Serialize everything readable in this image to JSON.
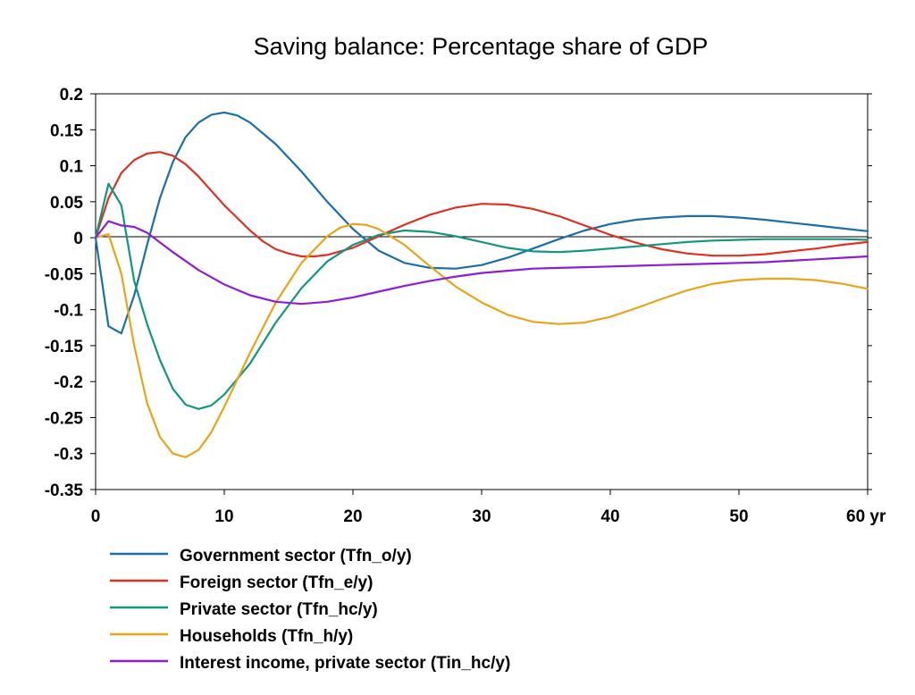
{
  "chart_data": {
    "type": "line",
    "title": "Saving balance: Percentage share of GDP",
    "x_unit": "yr",
    "xlim": [
      0,
      60
    ],
    "ylim": [
      -0.35,
      0.2
    ],
    "x_ticks": [
      0,
      10,
      20,
      30,
      40,
      50,
      60
    ],
    "x_tick_labels": [
      "0",
      "10",
      "20",
      "30",
      "40",
      "50",
      "60 yr"
    ],
    "y_ticks": [
      0.2,
      0.15,
      0.1,
      0.05,
      0,
      -0.05,
      -0.1,
      -0.15,
      -0.2,
      -0.25,
      -0.3,
      -0.35
    ],
    "y_tick_labels": [
      "0.2",
      "0.15",
      "0.1",
      "0.05",
      "0",
      "-0.05",
      "-0.1",
      "-0.15",
      "-0.2",
      "-0.25",
      "-0.3",
      "-0.35"
    ],
    "grid": false,
    "zero_line": true,
    "legend_position": "bottom-left",
    "series": [
      {
        "name": "Government sector (Tfn_o/y)",
        "color": "#1a6fa8",
        "points": [
          [
            0,
            0
          ],
          [
            1,
            -0.123
          ],
          [
            2,
            -0.133
          ],
          [
            3,
            -0.08
          ],
          [
            4,
            -0.01
          ],
          [
            5,
            0.055
          ],
          [
            6,
            0.105
          ],
          [
            7,
            0.14
          ],
          [
            8,
            0.16
          ],
          [
            9,
            0.171
          ],
          [
            10,
            0.174
          ],
          [
            11,
            0.17
          ],
          [
            12,
            0.16
          ],
          [
            14,
            0.13
          ],
          [
            16,
            0.092
          ],
          [
            18,
            0.05
          ],
          [
            20,
            0.012
          ],
          [
            22,
            -0.018
          ],
          [
            24,
            -0.035
          ],
          [
            26,
            -0.042
          ],
          [
            28,
            -0.043
          ],
          [
            30,
            -0.038
          ],
          [
            32,
            -0.028
          ],
          [
            34,
            -0.015
          ],
          [
            36,
            -0.002
          ],
          [
            38,
            0.01
          ],
          [
            40,
            0.019
          ],
          [
            42,
            0.025
          ],
          [
            44,
            0.028
          ],
          [
            46,
            0.03
          ],
          [
            48,
            0.03
          ],
          [
            50,
            0.028
          ],
          [
            52,
            0.025
          ],
          [
            54,
            0.021
          ],
          [
            56,
            0.017
          ],
          [
            58,
            0.013
          ],
          [
            60,
            0.009
          ]
        ]
      },
      {
        "name": "Foreign sector (Tfn_e/y)",
        "color": "#dc3223",
        "points": [
          [
            0,
            0
          ],
          [
            1,
            0.055
          ],
          [
            2,
            0.09
          ],
          [
            3,
            0.108
          ],
          [
            4,
            0.117
          ],
          [
            5,
            0.119
          ],
          [
            6,
            0.114
          ],
          [
            7,
            0.102
          ],
          [
            8,
            0.085
          ],
          [
            10,
            0.045
          ],
          [
            12,
            0.01
          ],
          [
            13,
            -0.005
          ],
          [
            14,
            -0.016
          ],
          [
            15,
            -0.022
          ],
          [
            16,
            -0.026
          ],
          [
            17,
            -0.026
          ],
          [
            18,
            -0.024
          ],
          [
            20,
            -0.014
          ],
          [
            22,
            0.002
          ],
          [
            24,
            0.018
          ],
          [
            26,
            0.032
          ],
          [
            28,
            0.042
          ],
          [
            30,
            0.047
          ],
          [
            32,
            0.046
          ],
          [
            34,
            0.04
          ],
          [
            36,
            0.03
          ],
          [
            38,
            0.017
          ],
          [
            40,
            0.004
          ],
          [
            42,
            -0.007
          ],
          [
            44,
            -0.016
          ],
          [
            46,
            -0.022
          ],
          [
            48,
            -0.025
          ],
          [
            50,
            -0.025
          ],
          [
            52,
            -0.023
          ],
          [
            54,
            -0.019
          ],
          [
            56,
            -0.015
          ],
          [
            58,
            -0.01
          ],
          [
            60,
            -0.006
          ]
        ]
      },
      {
        "name": "Private sector (Tfn_hc/y)",
        "color": "#13967e",
        "points": [
          [
            0,
            0
          ],
          [
            1,
            0.075
          ],
          [
            2,
            0.045
          ],
          [
            3,
            -0.06
          ],
          [
            4,
            -0.12
          ],
          [
            5,
            -0.17
          ],
          [
            6,
            -0.21
          ],
          [
            7,
            -0.232
          ],
          [
            8,
            -0.238
          ],
          [
            9,
            -0.233
          ],
          [
            10,
            -0.218
          ],
          [
            12,
            -0.175
          ],
          [
            14,
            -0.118
          ],
          [
            16,
            -0.07
          ],
          [
            18,
            -0.033
          ],
          [
            20,
            -0.01
          ],
          [
            22,
            0.004
          ],
          [
            24,
            0.01
          ],
          [
            26,
            0.008
          ],
          [
            28,
            0.002
          ],
          [
            30,
            -0.006
          ],
          [
            32,
            -0.014
          ],
          [
            34,
            -0.019
          ],
          [
            36,
            -0.02
          ],
          [
            38,
            -0.018
          ],
          [
            40,
            -0.015
          ],
          [
            42,
            -0.012
          ],
          [
            44,
            -0.009
          ],
          [
            46,
            -0.006
          ],
          [
            48,
            -0.004
          ],
          [
            50,
            -0.003
          ],
          [
            52,
            -0.002
          ],
          [
            54,
            -0.002
          ],
          [
            56,
            -0.002
          ],
          [
            58,
            -0.002
          ],
          [
            60,
            -0.003
          ]
        ]
      },
      {
        "name": "Households (Tfn_h/y)",
        "color": "#e8a51a",
        "points": [
          [
            0,
            0
          ],
          [
            1,
            0.005
          ],
          [
            2,
            -0.05
          ],
          [
            3,
            -0.15
          ],
          [
            4,
            -0.23
          ],
          [
            5,
            -0.277
          ],
          [
            6,
            -0.3
          ],
          [
            7,
            -0.305
          ],
          [
            8,
            -0.295
          ],
          [
            9,
            -0.27
          ],
          [
            10,
            -0.235
          ],
          [
            12,
            -0.16
          ],
          [
            14,
            -0.09
          ],
          [
            16,
            -0.035
          ],
          [
            18,
            0.002
          ],
          [
            19,
            0.014
          ],
          [
            20,
            0.019
          ],
          [
            21,
            0.018
          ],
          [
            22,
            0.012
          ],
          [
            24,
            -0.01
          ],
          [
            26,
            -0.04
          ],
          [
            28,
            -0.068
          ],
          [
            30,
            -0.09
          ],
          [
            32,
            -0.107
          ],
          [
            34,
            -0.117
          ],
          [
            36,
            -0.12
          ],
          [
            38,
            -0.118
          ],
          [
            40,
            -0.11
          ],
          [
            42,
            -0.098
          ],
          [
            44,
            -0.085
          ],
          [
            46,
            -0.073
          ],
          [
            48,
            -0.064
          ],
          [
            50,
            -0.059
          ],
          [
            52,
            -0.057
          ],
          [
            54,
            -0.057
          ],
          [
            56,
            -0.059
          ],
          [
            58,
            -0.064
          ],
          [
            60,
            -0.071
          ]
        ]
      },
      {
        "name": "Interest income, private sector (Tin_hc/y)",
        "color": "#8c1fd2",
        "points": [
          [
            0,
            0
          ],
          [
            1,
            0.023
          ],
          [
            2,
            0.017
          ],
          [
            3,
            0.015
          ],
          [
            4,
            0.007
          ],
          [
            6,
            -0.02
          ],
          [
            8,
            -0.045
          ],
          [
            10,
            -0.065
          ],
          [
            12,
            -0.08
          ],
          [
            14,
            -0.089
          ],
          [
            16,
            -0.092
          ],
          [
            18,
            -0.089
          ],
          [
            20,
            -0.083
          ],
          [
            22,
            -0.075
          ],
          [
            24,
            -0.067
          ],
          [
            26,
            -0.06
          ],
          [
            28,
            -0.054
          ],
          [
            30,
            -0.049
          ],
          [
            32,
            -0.046
          ],
          [
            34,
            -0.043
          ],
          [
            36,
            -0.042
          ],
          [
            38,
            -0.041
          ],
          [
            40,
            -0.04
          ],
          [
            42,
            -0.039
          ],
          [
            44,
            -0.038
          ],
          [
            46,
            -0.037
          ],
          [
            48,
            -0.036
          ],
          [
            50,
            -0.035
          ],
          [
            52,
            -0.034
          ],
          [
            54,
            -0.032
          ],
          [
            56,
            -0.03
          ],
          [
            58,
            -0.028
          ],
          [
            60,
            -0.026
          ]
        ]
      }
    ]
  }
}
